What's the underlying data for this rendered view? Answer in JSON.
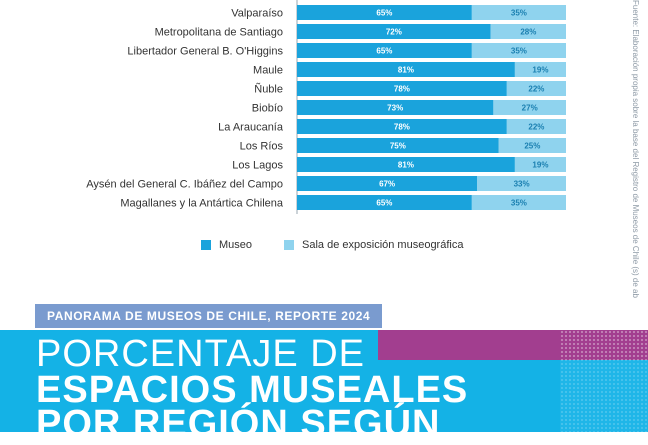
{
  "chart_data": {
    "type": "bar",
    "stacked": true,
    "orientation": "horizontal",
    "unit": "%",
    "categories": [
      "Valparaíso",
      "Metropolitana de Santiago",
      "Libertador General B. O'Higgins",
      "Maule",
      "Ñuble",
      "Biobío",
      "La Araucanía",
      "Los Ríos",
      "Los Lagos",
      "Aysén del General C. Ibáñez del Campo",
      "Magallanes y la Antártica Chilena"
    ],
    "series": [
      {
        "name": "Museo",
        "values": [
          65,
          72,
          65,
          81,
          78,
          73,
          78,
          75,
          81,
          67,
          65
        ]
      },
      {
        "name": "Sala de exposición museográfica",
        "values": [
          35,
          28,
          35,
          19,
          22,
          27,
          22,
          25,
          19,
          33,
          35
        ]
      }
    ],
    "xlim": [
      0,
      100
    ],
    "legend_position": "bottom"
  },
  "colors": {
    "museo": "#1aa3dc",
    "sala": "#8fd3ee",
    "museo_text": "#ffffff",
    "sala_text": "#1a7fb0",
    "banner": "#14b2e6",
    "magenta": "#a23e8f",
    "tag": "#7a9bcf"
  },
  "legend": {
    "museo_label": "Museo",
    "sala_label": "Sala de exposición museográfica"
  },
  "source_note": "Fuente: Elaboración propia sobre la base del Registro de Museos de Chile (s) de ab",
  "report_tag": "PANORAMA DE MUSEOS DE CHILE, REPORTE 2024",
  "title": {
    "line1": "PORCENTAJE DE",
    "line2": "ESPACIOS MUSEALES",
    "line3": "POR REGIÓN SEGÚN"
  }
}
